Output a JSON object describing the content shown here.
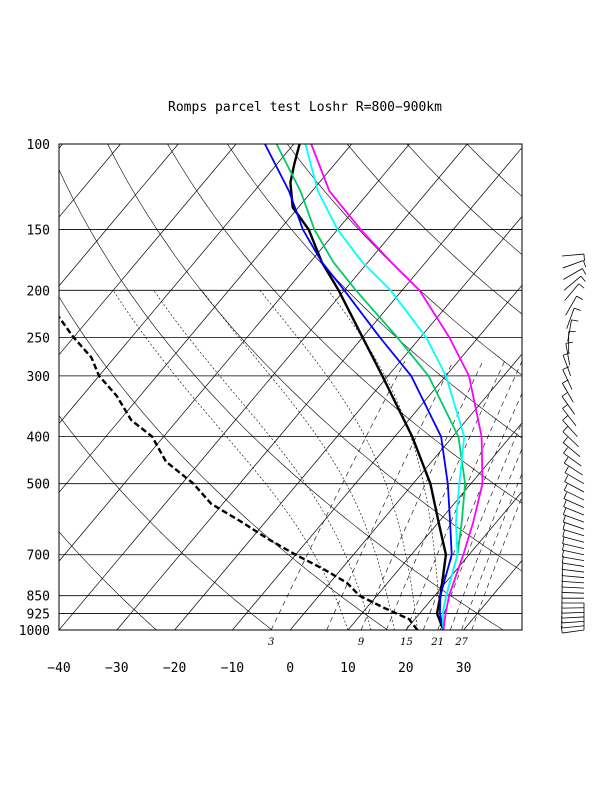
{
  "chart_data": {
    "type": "line",
    "diagram": "skew-T log-P",
    "title": "Romps parcel test Loshr R=800−900km",
    "pressure_levels_hPa": [
      100,
      150,
      200,
      250,
      300,
      400,
      500,
      700,
      850,
      925,
      1000
    ],
    "pressure_tick_labels": [
      "100",
      "150",
      "200",
      "250",
      "300",
      "400",
      "500",
      "700",
      "850",
      "925",
      "1000"
    ],
    "temperature_ticks_C": [
      -40,
      -30,
      -20,
      -10,
      0,
      10,
      20,
      30
    ],
    "temperature_tick_labels": [
      "−40",
      "−30",
      "−20",
      "−10",
      "0",
      "10",
      "20",
      "30"
    ],
    "mixing_ratio_labels": [
      "3",
      "9",
      "15",
      "21",
      "27"
    ],
    "ylim_hPa": [
      1000,
      100
    ],
    "xlim_C_at_1000hPa": [
      -40,
      40
    ],
    "y_scale": "log",
    "series": [
      {
        "style": "solid",
        "color": "#000000",
        "points": [
          [
            1000,
            26.5
          ],
          [
            925,
            23
          ],
          [
            850,
            21
          ],
          [
            700,
            16
          ],
          [
            600,
            10
          ],
          [
            500,
            3
          ],
          [
            400,
            -7
          ],
          [
            300,
            -21
          ],
          [
            250,
            -30
          ],
          [
            200,
            -41
          ],
          [
            175,
            -48
          ],
          [
            150,
            -55
          ],
          [
            135,
            -61
          ],
          [
            120,
            -65
          ],
          [
            110,
            -67
          ],
          [
            100,
            -69
          ]
        ]
      },
      {
        "style": "dashed",
        "color": "#000000",
        "points": [
          [
            1000,
            22
          ],
          [
            950,
            19
          ],
          [
            925,
            16
          ],
          [
            900,
            13
          ],
          [
            850,
            7
          ],
          [
            800,
            3
          ],
          [
            750,
            -3
          ],
          [
            700,
            -10
          ],
          [
            650,
            -17
          ],
          [
            600,
            -24
          ],
          [
            550,
            -32
          ],
          [
            500,
            -38
          ],
          [
            450,
            -46
          ],
          [
            400,
            -52
          ],
          [
            370,
            -58
          ],
          [
            330,
            -64
          ],
          [
            300,
            -70
          ],
          [
            275,
            -74
          ],
          [
            250,
            -80
          ],
          [
            225,
            -86
          ],
          [
            210,
            -94
          ],
          [
            195,
            -101
          ],
          [
            185,
            -104
          ],
          [
            175,
            -106
          ],
          [
            170,
            -107
          ]
        ]
      },
      {
        "style": "solid",
        "color": "#0000ff",
        "points": [
          [
            1000,
            26.5
          ],
          [
            925,
            23.5
          ],
          [
            850,
            21
          ],
          [
            700,
            17
          ],
          [
            600,
            12
          ],
          [
            500,
            6
          ],
          [
            400,
            -2
          ],
          [
            300,
            -16
          ],
          [
            250,
            -27
          ],
          [
            200,
            -40
          ],
          [
            175,
            -48
          ],
          [
            150,
            -56
          ],
          [
            125,
            -64
          ],
          [
            100,
            -75
          ]
        ]
      },
      {
        "style": "solid",
        "color": "#00cc66",
        "points": [
          [
            1000,
            26.5
          ],
          [
            925,
            24
          ],
          [
            850,
            22
          ],
          [
            700,
            18
          ],
          [
            600,
            14
          ],
          [
            500,
            9
          ],
          [
            400,
            1
          ],
          [
            300,
            -13
          ],
          [
            250,
            -24
          ],
          [
            200,
            -38
          ],
          [
            175,
            -46
          ],
          [
            150,
            -54
          ],
          [
            125,
            -62
          ],
          [
            100,
            -73
          ]
        ]
      },
      {
        "style": "solid",
        "color": "#00ffff",
        "points": [
          [
            1000,
            26.5
          ],
          [
            925,
            24
          ],
          [
            850,
            22
          ],
          [
            700,
            18
          ],
          [
            600,
            13
          ],
          [
            500,
            8
          ],
          [
            400,
            2
          ],
          [
            300,
            -10
          ],
          [
            250,
            -19
          ],
          [
            200,
            -32
          ],
          [
            175,
            -41
          ],
          [
            150,
            -50
          ],
          [
            125,
            -59
          ],
          [
            100,
            -68
          ]
        ]
      },
      {
        "style": "solid",
        "color": "#ff00ff",
        "points": [
          [
            1000,
            26.5
          ],
          [
            925,
            24.5
          ],
          [
            850,
            22.5
          ],
          [
            700,
            19
          ],
          [
            600,
            16
          ],
          [
            500,
            12
          ],
          [
            400,
            5
          ],
          [
            300,
            -6
          ],
          [
            250,
            -15
          ],
          [
            200,
            -27
          ],
          [
            175,
            -36
          ],
          [
            150,
            -46
          ],
          [
            125,
            -57
          ],
          [
            100,
            -67
          ]
        ]
      }
    ],
    "wind_barbs": {
      "pressures_hPa": [
        1000,
        980,
        960,
        940,
        920,
        900,
        880,
        860,
        840,
        820,
        800,
        780,
        760,
        740,
        720,
        700,
        680,
        660,
        640,
        620,
        600,
        580,
        560,
        540,
        520,
        500,
        480,
        460,
        440,
        420,
        400,
        380,
        360,
        340,
        320,
        300,
        285,
        270,
        255,
        240,
        225,
        210,
        200,
        190,
        180,
        170
      ],
      "barb_angles_deg": [
        -8,
        -6,
        -4,
        -3,
        -2,
        -1,
        0,
        0,
        2,
        3,
        4,
        5,
        7,
        9,
        10,
        12,
        13,
        15,
        17,
        19,
        20,
        22,
        24,
        26,
        28,
        30,
        33,
        36,
        40,
        44,
        48,
        52,
        55,
        60,
        65,
        70,
        80,
        90,
        100,
        110,
        120,
        130,
        140,
        150,
        160,
        175
      ]
    },
    "grid": true,
    "legend": "none"
  }
}
